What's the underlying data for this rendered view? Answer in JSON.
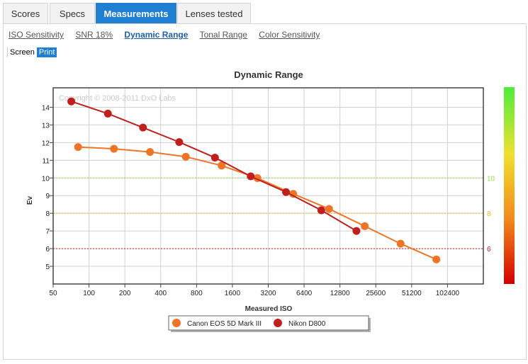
{
  "tabs": [
    {
      "label": "Scores",
      "active": false
    },
    {
      "label": "Specs",
      "active": false
    },
    {
      "label": "Measurements",
      "active": true
    },
    {
      "label": "Lenses tested",
      "active": false
    }
  ],
  "subnav": [
    {
      "label": "ISO Sensitivity",
      "active": false
    },
    {
      "label": "SNR 18%",
      "active": false
    },
    {
      "label": "Dynamic Range",
      "active": true
    },
    {
      "label": "Tonal Range",
      "active": false
    },
    {
      "label": "Color Sensitivity",
      "active": false
    }
  ],
  "modes": {
    "screen": "Screen",
    "print": "Print",
    "selected": "print"
  },
  "chart_data": {
    "type": "line",
    "title": "Dynamic Range",
    "watermark": "Copyright © 2008-2011 DxO Labs",
    "xlabel": "Measured ISO",
    "ylabel": "Ev",
    "xscale": "log2",
    "xlim": [
      50,
      204800
    ],
    "ylim": [
      4,
      15.1
    ],
    "xticks": [
      50,
      100,
      200,
      400,
      800,
      1600,
      3200,
      6400,
      12800,
      25600,
      51200,
      102400
    ],
    "yticks": [
      5,
      6,
      7,
      8,
      9,
      10,
      11,
      12,
      13,
      14
    ],
    "grid": true,
    "legend_position": "bottom-center",
    "reference_lines": [
      {
        "value": 10,
        "label": "10",
        "color": "#8ee04a"
      },
      {
        "value": 8,
        "label": "8",
        "color": "#e7b422"
      },
      {
        "value": 6,
        "label": "6",
        "color": "#b52020"
      }
    ],
    "color_scale": {
      "colors": [
        "#d40000",
        "#f28a1c",
        "#f0e030",
        "#4ded3a"
      ]
    },
    "series": [
      {
        "name": "Canon EOS 5D Mark III",
        "color": "#f07425",
        "x": [
          81,
          162,
          325,
          650,
          1298,
          2596,
          5181,
          10364,
          20688,
          41325,
          82507
        ],
        "y": [
          11.75,
          11.65,
          11.47,
          11.2,
          10.7,
          9.99,
          9.1,
          8.25,
          7.27,
          6.28,
          5.39
        ]
      },
      {
        "name": "Nikon D800",
        "color": "#c0201d",
        "x": [
          71,
          144,
          284,
          572,
          1142,
          2281,
          4512,
          8923,
          17605
        ],
        "y": [
          14.33,
          13.64,
          12.85,
          12.03,
          11.15,
          10.09,
          9.2,
          8.17,
          7.0
        ]
      }
    ]
  }
}
